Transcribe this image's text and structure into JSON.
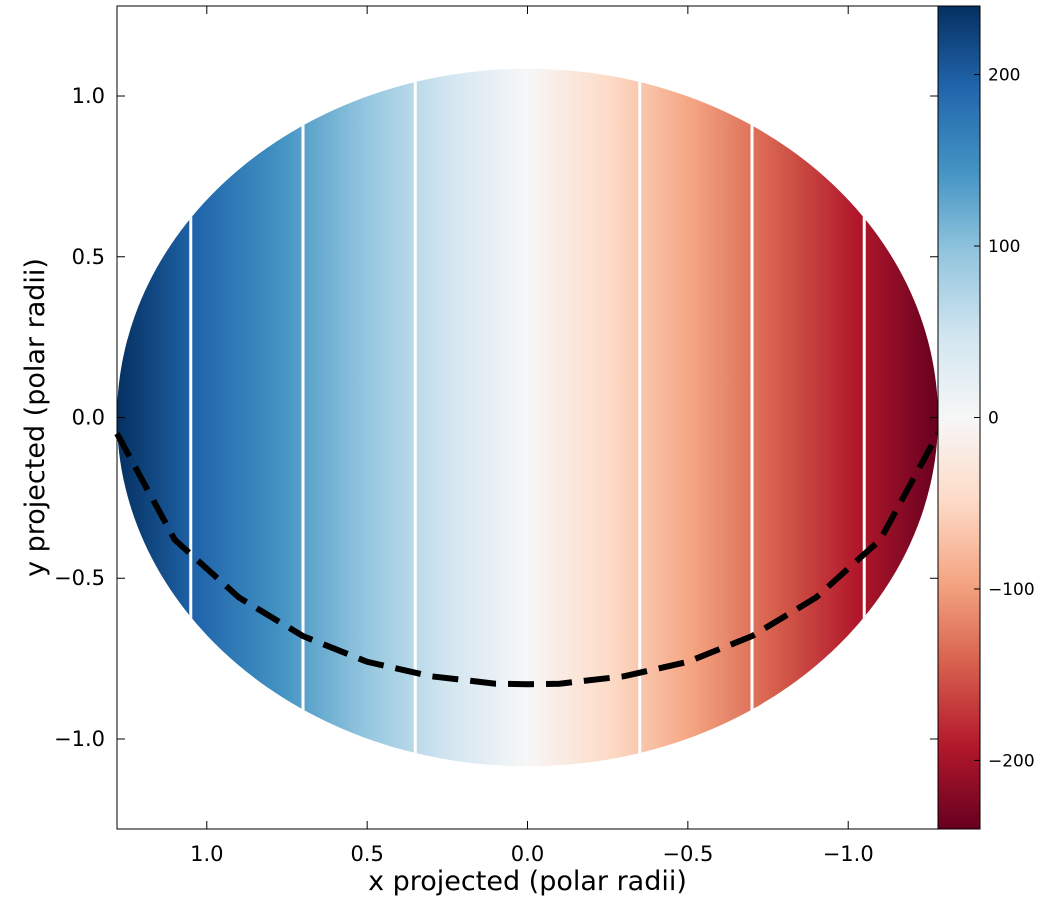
{
  "chart_data": {
    "type": "heatmap",
    "title": "",
    "xlabel": "x projected (polar radii)",
    "ylabel": "y projected (polar radii)",
    "xlim": [
      1.28,
      -1.28
    ],
    "ylim": [
      -1.28,
      1.28
    ],
    "x_ticks": [
      1.0,
      0.5,
      0.0,
      -0.5,
      -1.0
    ],
    "x_tick_labels": [
      "1.0",
      "0.5",
      "0.0",
      "−0.5",
      "−1.0"
    ],
    "y_ticks": [
      1.0,
      0.5,
      0.0,
      -0.5,
      -1.0
    ],
    "y_tick_labels": [
      "1.0",
      "0.5",
      "0.0",
      "−0.5",
      "−1.0"
    ],
    "disk": {
      "semi_axis_x": 1.28,
      "semi_axis_y": 1.085
    },
    "contour_lines_x": [
      1.05,
      0.7,
      0.35,
      -0.35,
      -0.7,
      -1.05
    ],
    "dashed_curve": {
      "x": [
        1.28,
        1.1,
        0.9,
        0.7,
        0.5,
        0.3,
        0.1,
        0.0,
        -0.1,
        -0.3,
        -0.5,
        -0.7,
        -0.9,
        -1.1,
        -1.28
      ],
      "y": [
        -0.05,
        -0.38,
        -0.56,
        -0.68,
        -0.76,
        -0.805,
        -0.828,
        -0.83,
        -0.828,
        -0.805,
        -0.76,
        -0.68,
        -0.56,
        -0.38,
        -0.05
      ]
    },
    "colorbar": {
      "min": -240,
      "max": 240,
      "ticks": [
        200,
        100,
        0,
        -100,
        -200
      ],
      "tick_labels": [
        "200",
        "100",
        "0",
        "−100",
        "−200"
      ],
      "colormap": "RdBu"
    }
  }
}
